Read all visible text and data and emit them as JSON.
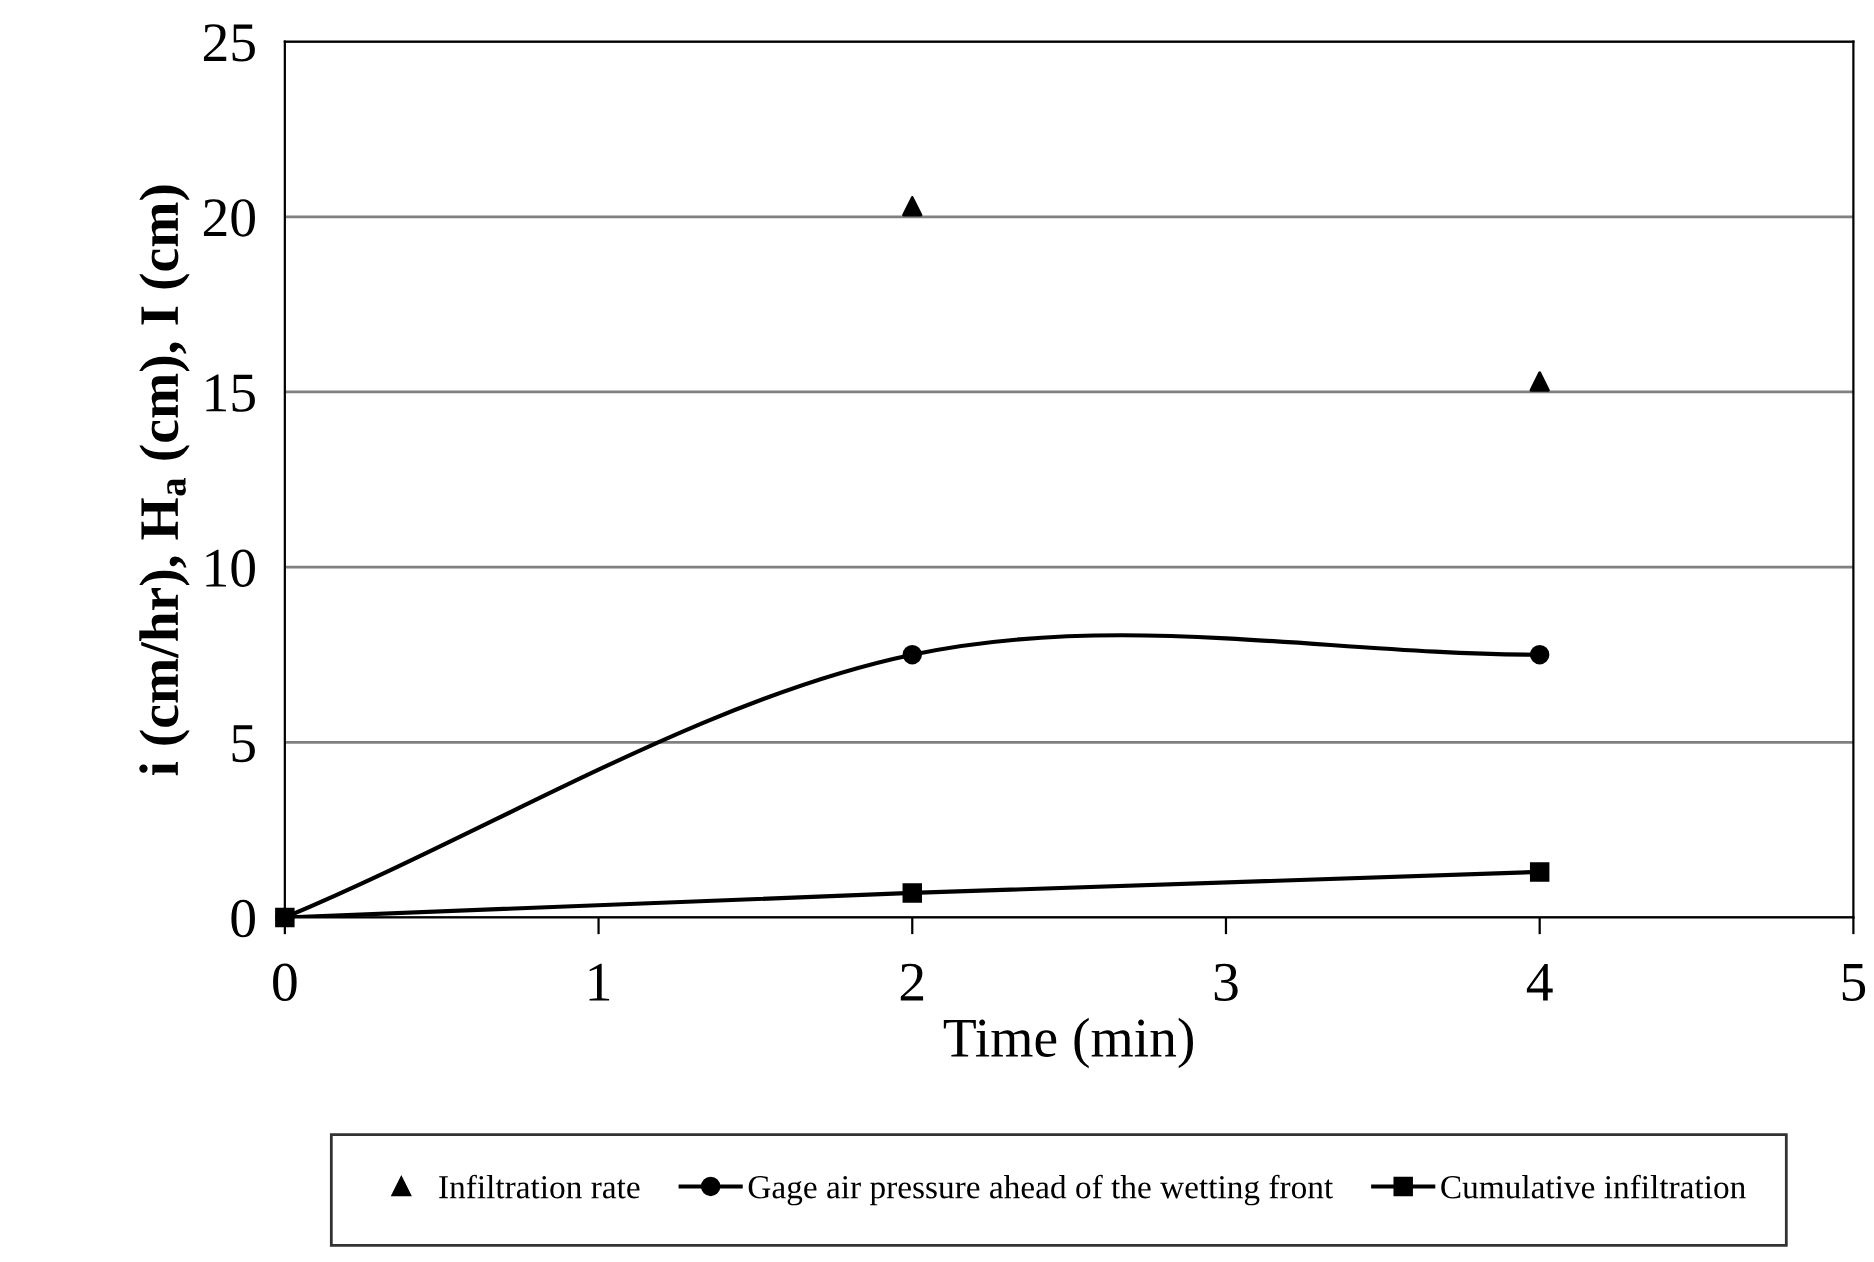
{
  "chart_data": {
    "type": "line",
    "xlabel": "Time (min)",
    "ylabel": "i (cm/hr), H$_{a}$ (cm), I (cm)",
    "xlim": [
      0,
      5
    ],
    "xticks": [
      0,
      1,
      2,
      3,
      4,
      5
    ],
    "ylim": [
      0,
      25
    ],
    "yticks": [
      0,
      5,
      10,
      15,
      20,
      25
    ],
    "grid": "y",
    "legend": "bottom",
    "series": [
      {
        "name": "Infiltration rate",
        "type": "scatter",
        "marker": "triangle",
        "color": "#000000",
        "x": [
          2,
          4
        ],
        "values": [
          20.3,
          15.3
        ]
      },
      {
        "name": "Gage air pressure ahead of the wetting front",
        "marker": "circle",
        "color": "#000000",
        "x": [
          0,
          2,
          4
        ],
        "values": [
          0,
          7.5,
          7.5
        ]
      },
      {
        "name": "Cumulative infiltration",
        "type": "line",
        "marker": "square",
        "color": "#000000",
        "x": [
          0,
          2,
          4
        ],
        "values": [
          0,
          0.7,
          1.3
        ]
      }
    ]
  }
}
